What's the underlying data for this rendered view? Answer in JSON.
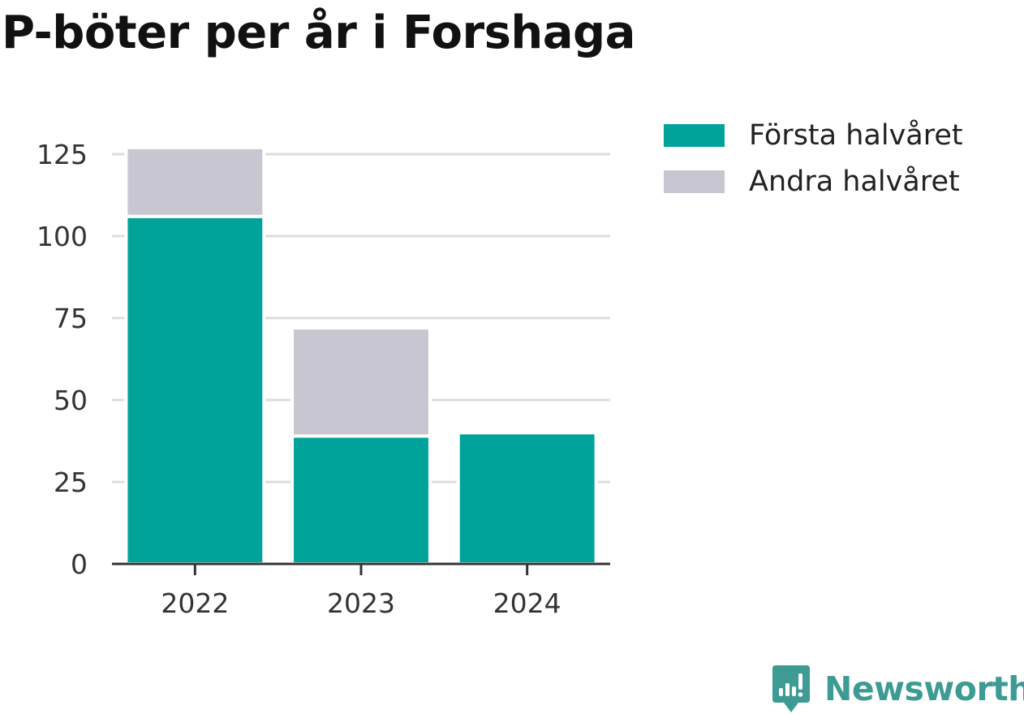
{
  "chart_data": {
    "type": "bar",
    "stacked": true,
    "title": "P-böter per år i Forshaga",
    "xlabel": "",
    "ylabel": "",
    "categories": [
      "2022",
      "2023",
      "2024"
    ],
    "series": [
      {
        "name": "Första halvåret",
        "color": "#00a39a",
        "values": [
          106,
          39,
          40
        ]
      },
      {
        "name": "Andra halvåret",
        "color": "#c8c7d1",
        "values": [
          21,
          33,
          0
        ]
      }
    ],
    "ylim": [
      0,
      125
    ],
    "yticks": [
      "0",
      "25",
      "50",
      "75",
      "100",
      "125"
    ],
    "grid": true,
    "legend_position": "right"
  },
  "brand": {
    "name": "Newsworthy",
    "icon": "newsworthy-logo-icon",
    "color": "#3d9b94"
  }
}
